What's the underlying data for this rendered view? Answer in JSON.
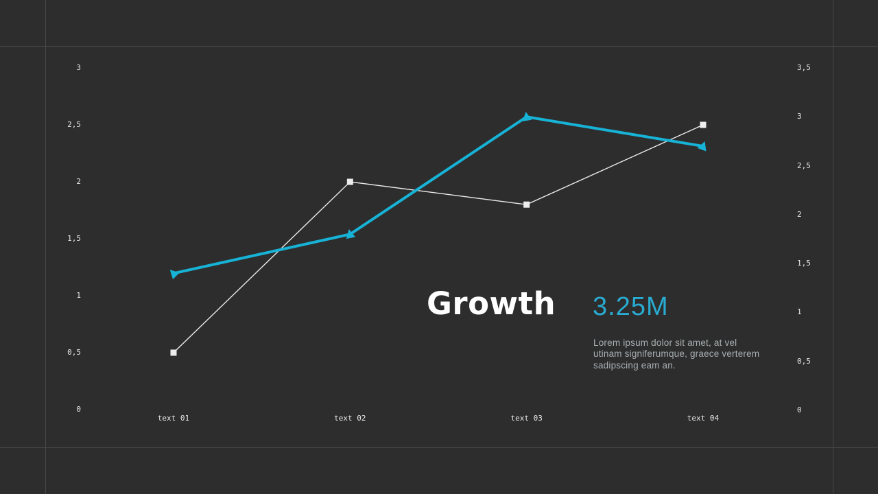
{
  "slide": {
    "title": "Growth",
    "stat_value": "3.25M",
    "description": "Lorem ipsum dolor sit amet, at vel utinam signiferumque, graece verterem sadipscing eam an."
  },
  "colors": {
    "background": "#2d2d2d",
    "grid_line": "#474747",
    "accent_line": "#17b3d6",
    "accent_stat": "#2aabd2",
    "white_series": "#ededed",
    "muted_text": "#a9afb3",
    "tick_text": "#e9e9e9"
  },
  "chart_data": {
    "type": "line",
    "title": "Growth",
    "categories": [
      "text 01",
      "text 02",
      "text 03",
      "text 04"
    ],
    "series": [
      {
        "name": "white series",
        "axis": "left",
        "marker": "square",
        "color": "#ededed",
        "values": [
          0.5,
          2.0,
          1.8,
          2.5
        ]
      },
      {
        "name": "teal series",
        "axis": "right",
        "marker": "triangle",
        "color": "#17b3d6",
        "values": [
          1.4,
          1.8,
          3.0,
          2.7
        ]
      }
    ],
    "left_axis": {
      "tick_labels": [
        "3",
        "2,5",
        "2",
        "1,5",
        "1",
        "0,5",
        "0"
      ],
      "tick_values": [
        3,
        2.5,
        2,
        1.5,
        1,
        0.5,
        0
      ],
      "min": 0,
      "max": 3
    },
    "right_axis": {
      "tick_labels": [
        "3,5",
        "3",
        "2,5",
        "2",
        "1,5",
        "1",
        "0,5",
        "0"
      ],
      "tick_values": [
        3.5,
        3,
        2.5,
        2,
        1.5,
        1,
        0.5,
        0
      ],
      "min": 0,
      "max": 3.5
    },
    "xlabel": "",
    "ylabel": "",
    "grid": "outer-frame-only",
    "legend": "none"
  }
}
